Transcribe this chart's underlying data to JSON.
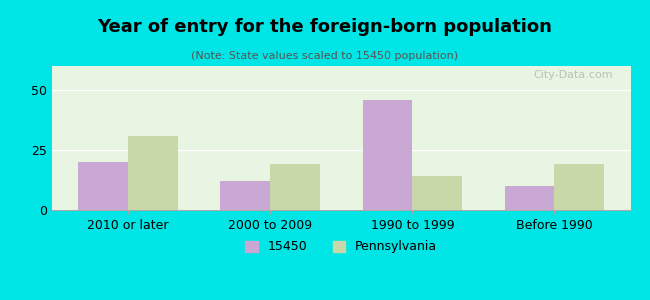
{
  "title": "Year of entry for the foreign-born population",
  "subtitle": "(Note: State values scaled to 15450 population)",
  "categories": [
    "2010 or later",
    "2000 to 2009",
    "1990 to 1999",
    "Before 1990"
  ],
  "values_15450": [
    20,
    12,
    46,
    10
  ],
  "values_pennsylvania": [
    31,
    19,
    14,
    19
  ],
  "bar_color_15450": "#c9a8d4",
  "bar_color_pennsylvania": "#c8d8a8",
  "background_outer": "#00e5e5",
  "background_inner": "#e8f5e0",
  "background_inner2": "#ffffff",
  "ylim": [
    0,
    60
  ],
  "yticks": [
    0,
    25,
    50
  ],
  "bar_width": 0.35,
  "legend_label_1": "15450",
  "legend_label_2": "Pennsylvania",
  "watermark": "City-Data.com"
}
